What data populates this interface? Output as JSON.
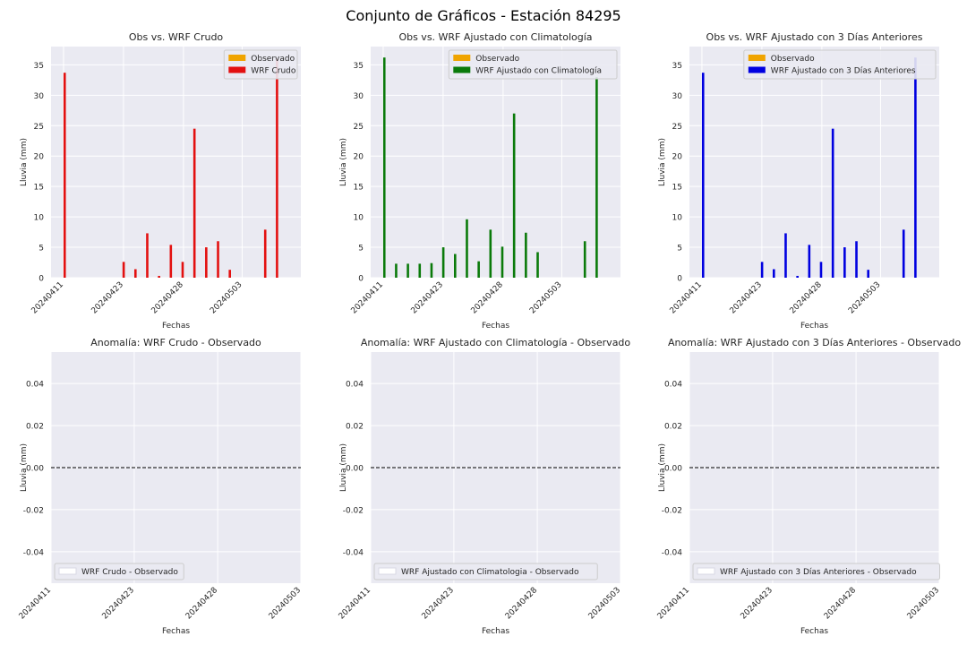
{
  "figure": {
    "suptitle": "Conjunto de Gráficos - Estación 84295"
  },
  "colors": {
    "observed": "#f0a400",
    "crudo": "#e31010",
    "clim": "#0a7a0a",
    "prev3": "#0000e0",
    "background": "#eaeaf2",
    "grid": "#ffffff"
  },
  "chart_data": [
    {
      "type": "bar",
      "title": "Obs vs. WRF Crudo",
      "xlabel": "Fechas",
      "ylabel": "Lluvia (mm)",
      "ylim": [
        0,
        38
      ],
      "yticks": [
        0,
        5,
        10,
        15,
        20,
        25,
        30,
        35
      ],
      "x_ticks": [
        "20240411",
        "20240423",
        "20240428",
        "20240503"
      ],
      "legend": {
        "position": "top-right"
      },
      "series": [
        {
          "name": "Observado",
          "color_key": "observed",
          "values": [
            0,
            0,
            0,
            0,
            0,
            0,
            0,
            0,
            0,
            0,
            0,
            0,
            0,
            0,
            0,
            0,
            0,
            0,
            0
          ]
        },
        {
          "name": "WRF Crudo",
          "color_key": "crudo",
          "values": [
            33.7,
            0,
            0,
            0,
            0,
            2.6,
            1.4,
            7.3,
            0.3,
            5.4,
            2.6,
            24.5,
            5.0,
            6.0,
            1.3,
            0,
            0,
            7.9,
            36
          ]
        }
      ]
    },
    {
      "type": "bar",
      "title": "Obs vs. WRF Ajustado con Climatología",
      "xlabel": "Fechas",
      "ylabel": "Lluvia (mm)",
      "ylim": [
        0,
        38
      ],
      "yticks": [
        0,
        5,
        10,
        15,
        20,
        25,
        30,
        35
      ],
      "x_ticks": [
        "20240411",
        "20240423",
        "20240428",
        "20240503"
      ],
      "legend": {
        "position": "top-right"
      },
      "series": [
        {
          "name": "Observado",
          "color_key": "observed",
          "values": [
            0,
            0,
            0,
            0,
            0,
            0,
            0,
            0,
            0,
            0,
            0,
            0,
            0,
            0,
            0,
            0,
            0,
            0,
            0
          ]
        },
        {
          "name": "WRF Ajustado con Climatología",
          "color_key": "clim",
          "values": [
            36.2,
            2.3,
            2.3,
            2.3,
            2.4,
            5.0,
            3.9,
            9.6,
            2.7,
            7.9,
            5.1,
            27.0,
            7.4,
            4.2,
            0,
            0,
            0,
            6.0,
            33
          ]
        }
      ]
    },
    {
      "type": "bar",
      "title": "Obs vs. WRF Ajustado con 3 Días Anteriores",
      "xlabel": "Fechas",
      "ylabel": "Lluvia (mm)",
      "ylim": [
        0,
        38
      ],
      "yticks": [
        0,
        5,
        10,
        15,
        20,
        25,
        30,
        35
      ],
      "x_ticks": [
        "20240411",
        "20240423",
        "20240428",
        "20240503"
      ],
      "legend": {
        "position": "top-right"
      },
      "series": [
        {
          "name": "Observado",
          "color_key": "observed",
          "values": [
            0,
            0,
            0,
            0,
            0,
            0,
            0,
            0,
            0,
            0,
            0,
            0,
            0,
            0,
            0,
            0,
            0,
            0,
            0
          ]
        },
        {
          "name": "WRF Ajustado con 3 Días Anteriores",
          "color_key": "prev3",
          "values": [
            33.7,
            0,
            0,
            0,
            0,
            2.6,
            1.4,
            7.3,
            0.3,
            5.4,
            2.6,
            24.5,
            5.0,
            6.0,
            1.3,
            0,
            0,
            7.9,
            36.2
          ]
        }
      ]
    },
    {
      "type": "line",
      "title": "Anomalía: WRF Crudo - Observado",
      "xlabel": "Fechas",
      "ylabel": "Lluvia (mm)",
      "ylim": [
        -0.055,
        0.055
      ],
      "yticks": [
        -0.04,
        -0.02,
        0.0,
        0.02,
        0.04
      ],
      "x_ticks": [
        "20240411",
        "20240423",
        "20240428",
        "20240503"
      ],
      "reference_line": 0,
      "legend": {
        "position": "bottom-left"
      },
      "series": [
        {
          "name": "WRF Crudo - Observado",
          "values": []
        }
      ]
    },
    {
      "type": "line",
      "title": "Anomalía: WRF Ajustado con Climatología - Observado",
      "xlabel": "Fechas",
      "ylabel": "Lluvia (mm)",
      "ylim": [
        -0.055,
        0.055
      ],
      "yticks": [
        -0.04,
        -0.02,
        0.0,
        0.02,
        0.04
      ],
      "x_ticks": [
        "20240411",
        "20240423",
        "20240428",
        "20240503"
      ],
      "reference_line": 0,
      "legend": {
        "position": "bottom-left"
      },
      "series": [
        {
          "name": "WRF Ajustado con Climatologia - Observado",
          "values": []
        }
      ]
    },
    {
      "type": "line",
      "title": "Anomalía: WRF Ajustado con 3 Días Anteriores - Observado",
      "xlabel": "Fechas",
      "ylabel": "Lluvia (mm)",
      "ylim": [
        -0.055,
        0.055
      ],
      "yticks": [
        -0.04,
        -0.02,
        0.0,
        0.02,
        0.04
      ],
      "x_ticks": [
        "20240411",
        "20240423",
        "20240428",
        "20240503"
      ],
      "reference_line": 0,
      "legend": {
        "position": "bottom-left"
      },
      "series": [
        {
          "name": "WRF Ajustado con 3 Días Anteriores - Observado",
          "values": []
        }
      ]
    }
  ]
}
